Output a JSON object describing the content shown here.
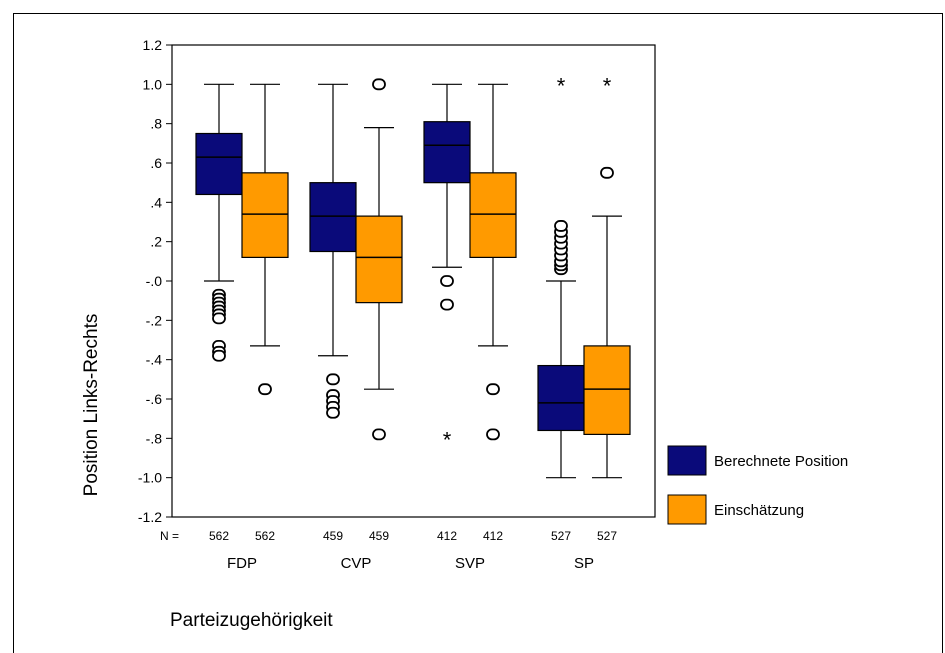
{
  "chart_data": {
    "type": "boxplot",
    "ylabel": "Position Links-Rechts",
    "xlabel": "Parteizugehörigkeit",
    "ylim": [
      -1.2,
      1.2
    ],
    "yticks": [
      1.2,
      1.0,
      0.8,
      0.6,
      0.4,
      0.2,
      0.0,
      -0.2,
      -0.4,
      -0.6,
      -0.8,
      -1.0,
      -1.2
    ],
    "ytick_labels": [
      "1.2",
      "1.0",
      ".8",
      ".6",
      ".4",
      ".2",
      "-.0",
      "-.2",
      "-.4",
      "-.6",
      "-.8",
      "-1.0",
      "-1.2"
    ],
    "n_prefix": "N =",
    "categories": [
      "FDP",
      "CVP",
      "SVP",
      "SP"
    ],
    "series": [
      {
        "name": "Berechnete Position",
        "color": "#0a0a7a",
        "boxes": [
          {
            "n": "562",
            "whisker_low": 0.0,
            "q1": 0.44,
            "median": 0.63,
            "q3": 0.75,
            "whisker_high": 1.0,
            "outliers": [
              -0.07,
              -0.09,
              -0.11,
              -0.13,
              -0.15,
              -0.17,
              -0.19,
              -0.33,
              -0.36,
              -0.38
            ],
            "extremes": []
          },
          {
            "n": "459",
            "whisker_low": -0.38,
            "q1": 0.15,
            "median": 0.33,
            "q3": 0.5,
            "whisker_high": 1.0,
            "outliers": [
              -0.5,
              -0.58,
              -0.61,
              -0.64,
              -0.67
            ],
            "extremes": []
          },
          {
            "n": "412",
            "whisker_low": 0.07,
            "q1": 0.5,
            "median": 0.69,
            "q3": 0.81,
            "whisker_high": 1.0,
            "outliers": [
              0.0,
              -0.12
            ],
            "extremes": [
              -0.8
            ]
          },
          {
            "n": "527",
            "whisker_low": -1.0,
            "q1": -0.76,
            "median": -0.62,
            "q3": -0.43,
            "whisker_high": 0.0,
            "outliers": [
              0.06,
              0.08,
              0.1,
              0.13,
              0.16,
              0.19,
              0.22,
              0.25,
              0.28
            ],
            "extremes": [
              1.0
            ]
          }
        ]
      },
      {
        "name": "Einschätzung",
        "color": "#ff9a00",
        "boxes": [
          {
            "n": "562",
            "whisker_low": -0.33,
            "q1": 0.12,
            "median": 0.34,
            "q3": 0.55,
            "whisker_high": 1.0,
            "outliers": [
              -0.55
            ],
            "extremes": []
          },
          {
            "n": "459",
            "whisker_low": -0.55,
            "q1": -0.11,
            "median": 0.12,
            "q3": 0.33,
            "whisker_high": 0.78,
            "outliers": [
              1.0,
              -0.78
            ],
            "extremes": []
          },
          {
            "n": "412",
            "whisker_low": -0.33,
            "q1": 0.12,
            "median": 0.34,
            "q3": 0.55,
            "whisker_high": 1.0,
            "outliers": [
              -0.55,
              -0.78
            ],
            "extremes": []
          },
          {
            "n": "527",
            "whisker_low": -1.0,
            "q1": -0.78,
            "median": -0.55,
            "q3": -0.33,
            "whisker_high": 0.33,
            "outliers": [
              0.55
            ],
            "extremes": [
              1.0
            ]
          }
        ]
      }
    ],
    "legend": {
      "position": "right"
    },
    "grid": false
  }
}
